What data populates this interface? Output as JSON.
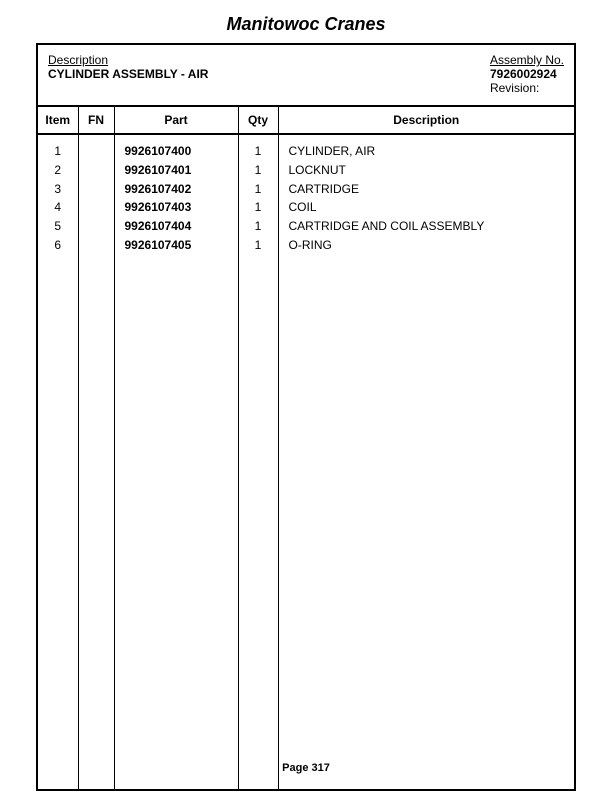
{
  "title": "Manitowoc Cranes",
  "header": {
    "description_label": "Description",
    "description_value": "CYLINDER ASSEMBLY - AIR",
    "assembly_label": "Assembly No.",
    "assembly_value": "7926002924",
    "revision_label": "Revision:"
  },
  "columns": {
    "item": "Item",
    "fn": "FN",
    "part": "Part",
    "qty": "Qty",
    "description": "Description"
  },
  "rows": [
    {
      "item": "1",
      "fn": "",
      "part": "9926107400",
      "qty": "1",
      "description": "CYLINDER, AIR"
    },
    {
      "item": "2",
      "fn": "",
      "part": "9926107401",
      "qty": "1",
      "description": "LOCKNUT"
    },
    {
      "item": "3",
      "fn": "",
      "part": "9926107402",
      "qty": "1",
      "description": "CARTRIDGE"
    },
    {
      "item": "4",
      "fn": "",
      "part": "9926107403",
      "qty": "1",
      "description": "COIL"
    },
    {
      "item": "5",
      "fn": "",
      "part": "9926107404",
      "qty": "1",
      "description": "CARTRIDGE AND COIL ASSEMBLY"
    },
    {
      "item": "6",
      "fn": "",
      "part": "9926107405",
      "qty": "1",
      "description": "O-RING"
    }
  ],
  "footer": "Page 317"
}
